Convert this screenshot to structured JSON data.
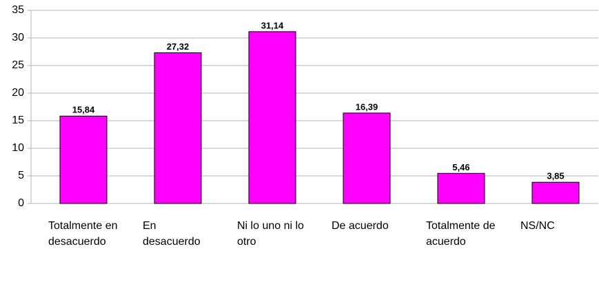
{
  "chart_data": {
    "type": "bar",
    "categories": [
      "Totalmente en desacuerdo",
      "En desacuerdo",
      "Ni lo uno ni lo otro",
      "De acuerdo",
      "Totalmente de acuerdo",
      "NS/NC"
    ],
    "values": [
      15.84,
      27.32,
      31.14,
      16.39,
      5.46,
      3.85
    ],
    "value_labels": [
      "15,84",
      "27,32",
      "31,14",
      "16,39",
      "5,46",
      "3,85"
    ],
    "color": "#ff00ff",
    "ylim": [
      0,
      35
    ],
    "yticks": [
      0,
      5,
      10,
      15,
      20,
      25,
      30,
      35
    ],
    "grid": true
  }
}
